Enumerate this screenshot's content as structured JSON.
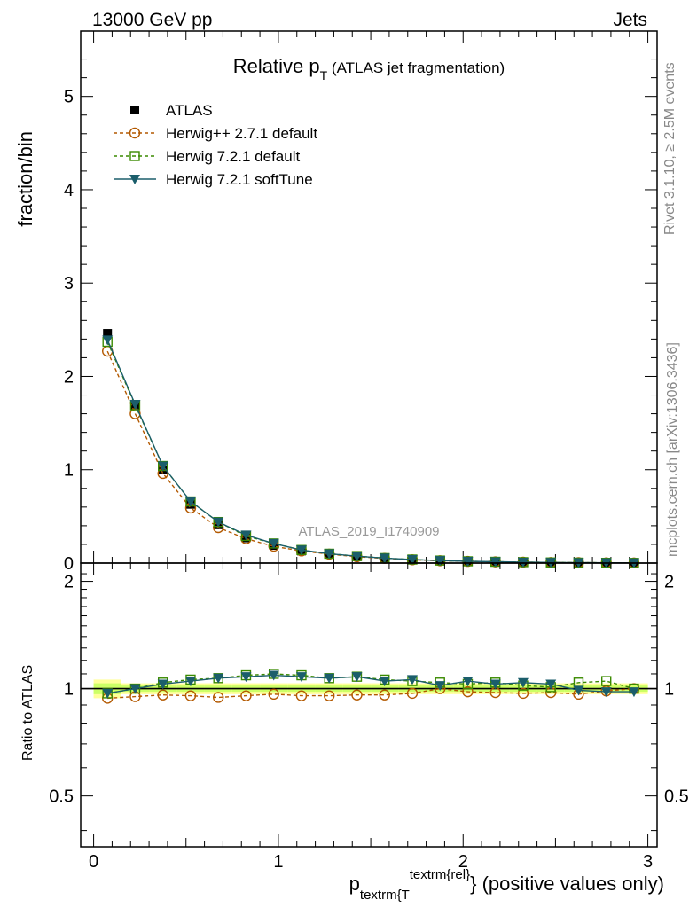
{
  "header": {
    "left": "13000 GeV pp",
    "right": "Jets"
  },
  "side_text": {
    "rivet": "Rivet 3.1.10, ≥ 2.5M events",
    "mcplots": "mcplots.cern.ch [arXiv:1306.3436]"
  },
  "watermark": "ATLAS_2019_I1740909",
  "colors": {
    "atlas": "#000000",
    "herwigpp": "#b35900",
    "herwig_default": "#3a8a00",
    "herwig_soft": "#1b5e6b",
    "band_inner": "#ccff66",
    "band_outer": "#ffff99"
  },
  "chart_data": [
    {
      "type": "line",
      "title_main": "Relative p",
      "title_sub": "T",
      "title_rest": " (ATLAS jet fragmentation)",
      "ylabel": "fraction/bin",
      "ylim": [
        0,
        5.7
      ],
      "yticks": [
        0,
        1,
        2,
        3,
        4,
        5
      ],
      "ytick_labels": [
        "0",
        "1",
        "2",
        "3",
        "4",
        "5"
      ],
      "xlim": [
        -0.07,
        3.05
      ],
      "x": [
        0.075,
        0.225,
        0.375,
        0.525,
        0.675,
        0.825,
        0.975,
        1.125,
        1.275,
        1.425,
        1.575,
        1.725,
        1.875,
        2.025,
        2.175,
        2.325,
        2.475,
        2.625,
        2.775,
        2.925
      ],
      "legend_position": "top-left",
      "series": [
        {
          "name": "ATLAS",
          "marker": "filled-square",
          "values": [
            2.46,
            1.69,
            1.0,
            0.63,
            0.41,
            0.27,
            0.19,
            0.13,
            0.1,
            0.07,
            0.05,
            0.035,
            0.025,
            0.018,
            0.013,
            0.01,
            0.007,
            0.005,
            0.003,
            0.002
          ]
        },
        {
          "name": "Herwig++ 2.7.1 default",
          "marker": "open-circle",
          "values": [
            2.27,
            1.6,
            0.96,
            0.59,
            0.38,
            0.26,
            0.18,
            0.13,
            0.095,
            0.068,
            0.05,
            0.035,
            0.025,
            0.018,
            0.013,
            0.01,
            0.007,
            0.005,
            0.003,
            0.002
          ]
        },
        {
          "name": "Herwig 7.2.1 default",
          "marker": "open-square",
          "values": [
            2.37,
            1.69,
            1.04,
            0.66,
            0.44,
            0.29,
            0.21,
            0.14,
            0.1,
            0.075,
            0.053,
            0.038,
            0.027,
            0.019,
            0.014,
            0.01,
            0.007,
            0.005,
            0.003,
            0.002
          ]
        },
        {
          "name": "Herwig 7.2.1 softTune",
          "marker": "filled-triangle-down",
          "values": [
            2.39,
            1.7,
            1.04,
            0.66,
            0.44,
            0.3,
            0.21,
            0.14,
            0.1,
            0.074,
            0.053,
            0.038,
            0.027,
            0.019,
            0.014,
            0.01,
            0.007,
            0.005,
            0.003,
            0.002
          ]
        }
      ]
    },
    {
      "type": "line",
      "ylabel": "Ratio to ATLAS",
      "xlabel_main": "p",
      "xlabel_sub": "textrm{T",
      "xlabel_sup": "textrm{rel}",
      "xlabel_rest": "} (positive values only)",
      "ylim": [
        0.36,
        2.25
      ],
      "yticks": [
        0.5,
        1,
        2
      ],
      "ytick_labels": [
        "0.5",
        "1",
        "2"
      ],
      "xticks": [
        0,
        1,
        2,
        3
      ],
      "xtick_labels": [
        "0",
        "1",
        "2",
        "3"
      ],
      "xlim": [
        -0.07,
        3.05
      ],
      "x": [
        0.075,
        0.225,
        0.375,
        0.525,
        0.675,
        0.825,
        0.975,
        1.125,
        1.275,
        1.425,
        1.575,
        1.725,
        1.875,
        2.025,
        2.175,
        2.325,
        2.475,
        2.625,
        2.775,
        2.925
      ],
      "band_inner": [
        0.035,
        0.02,
        0.02,
        0.02,
        0.02,
        0.02,
        0.02,
        0.02,
        0.02,
        0.02,
        0.02,
        0.02,
        0.02,
        0.02,
        0.02,
        0.02,
        0.02,
        0.02,
        0.02,
        0.02
      ],
      "band_outer": [
        0.06,
        0.035,
        0.035,
        0.035,
        0.035,
        0.035,
        0.035,
        0.035,
        0.035,
        0.035,
        0.035,
        0.035,
        0.035,
        0.035,
        0.035,
        0.035,
        0.035,
        0.035,
        0.035,
        0.035
      ],
      "series": [
        {
          "name": "Herwig++ 2.7.1 default",
          "marker": "open-circle",
          "values": [
            0.94,
            0.95,
            0.96,
            0.955,
            0.945,
            0.955,
            0.965,
            0.955,
            0.955,
            0.96,
            0.96,
            0.97,
            1.0,
            0.98,
            0.975,
            0.97,
            0.975,
            0.965,
            0.985,
            1.0
          ]
        },
        {
          "name": "Herwig 7.2.1 default",
          "marker": "open-square",
          "values": [
            0.97,
            1.0,
            1.04,
            1.06,
            1.07,
            1.09,
            1.1,
            1.09,
            1.07,
            1.08,
            1.06,
            1.05,
            1.04,
            1.03,
            1.04,
            1.02,
            1.01,
            1.04,
            1.05,
            1.0
          ]
        },
        {
          "name": "Herwig 7.2.1 softTune",
          "marker": "filled-triangle-down",
          "values": [
            0.97,
            1.0,
            1.03,
            1.05,
            1.07,
            1.08,
            1.09,
            1.08,
            1.07,
            1.08,
            1.05,
            1.06,
            1.02,
            1.05,
            1.03,
            1.04,
            1.03,
            0.99,
            0.98,
            0.98
          ]
        }
      ]
    }
  ]
}
